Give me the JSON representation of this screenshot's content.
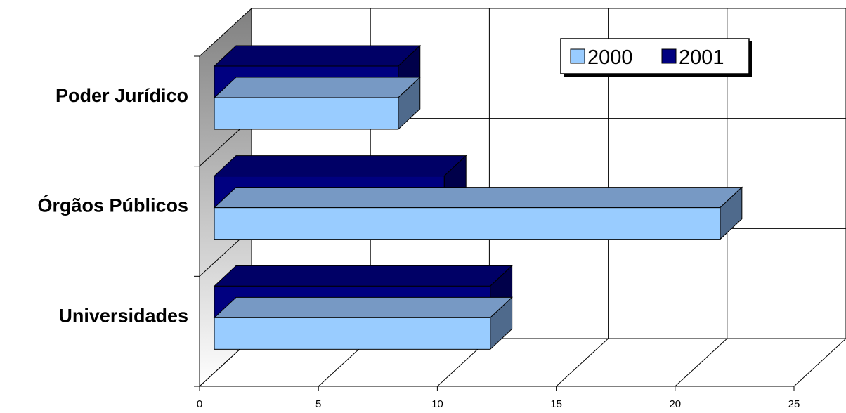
{
  "chart_data": {
    "type": "bar",
    "orientation": "horizontal",
    "style": "3d",
    "categories": [
      "Poder Jurídico",
      "Órgãos Públicos",
      "Universidades"
    ],
    "series": [
      {
        "name": "2000",
        "values": [
          8,
          22,
          12
        ],
        "color": "#99ccff"
      },
      {
        "name": "2001",
        "values": [
          8,
          10,
          12
        ],
        "color": "#000080"
      }
    ],
    "xlim": [
      0,
      25
    ],
    "xticks": [
      "0",
      "5",
      "10",
      "15",
      "20",
      "25"
    ],
    "grid": true,
    "legend": {
      "position": "top-right",
      "entries": [
        "2000",
        "2001"
      ]
    },
    "title": "",
    "xlabel": "",
    "ylabel": ""
  },
  "colors": {
    "light_front": "#99ccff",
    "light_top": "#7799c4",
    "light_side": "#4f6a8c",
    "dark_front": "#000080",
    "dark_top": "#000066",
    "dark_side": "#00004a"
  }
}
